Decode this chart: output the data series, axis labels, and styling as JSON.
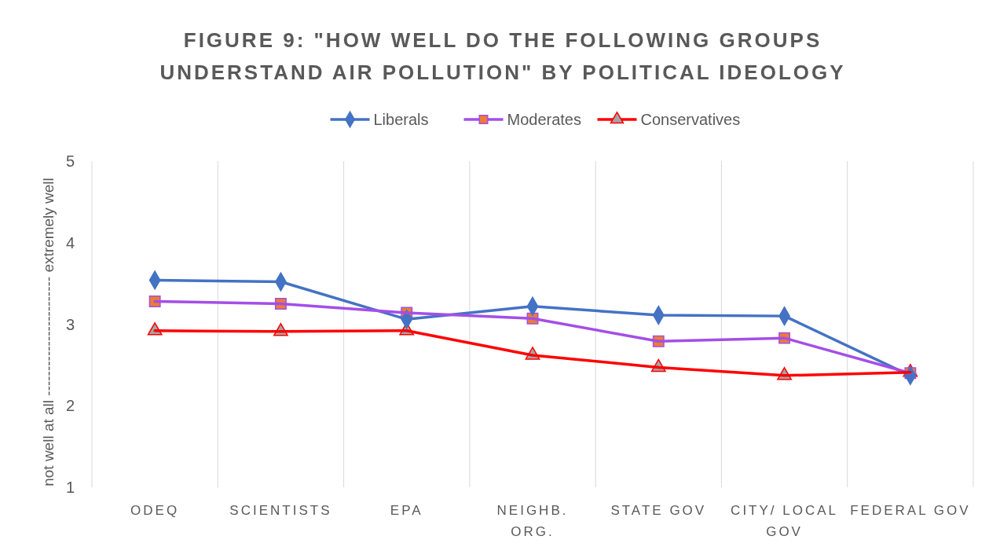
{
  "chart_data": {
    "type": "line",
    "title": "FIGURE 9: \"HOW WELL DO THE FOLLOWING GROUPS UNDERSTAND AIR POLLUTION\" BY POLITICAL IDEOLOGY",
    "ylabel": "not well at all ------------------------ extremely well",
    "categories": [
      "ODEQ",
      "SCIENTISTS",
      "EPA",
      "NEIGHB. ORG.",
      "STATE GOV",
      "CITY/ LOCAL GOV",
      "FEDERAL GOV"
    ],
    "series": [
      {
        "name": "Liberals",
        "color": "#4472c4",
        "marker": "diamond",
        "values": [
          3.54,
          3.52,
          3.06,
          3.22,
          3.11,
          3.1,
          2.37
        ]
      },
      {
        "name": "Moderates",
        "color": "#a44ee8",
        "marker": "square",
        "values": [
          3.28,
          3.25,
          3.14,
          3.07,
          2.79,
          2.83,
          2.4
        ]
      },
      {
        "name": "Conservatives",
        "color": "#ff0000",
        "marker": "triangle",
        "values": [
          2.92,
          2.91,
          2.92,
          2.62,
          2.47,
          2.37,
          2.41
        ]
      }
    ],
    "ylim": [
      1,
      5
    ],
    "yticks": [
      1,
      2,
      3,
      4,
      5
    ],
    "grid": "x",
    "legend": "top",
    "line_style": "solid"
  }
}
